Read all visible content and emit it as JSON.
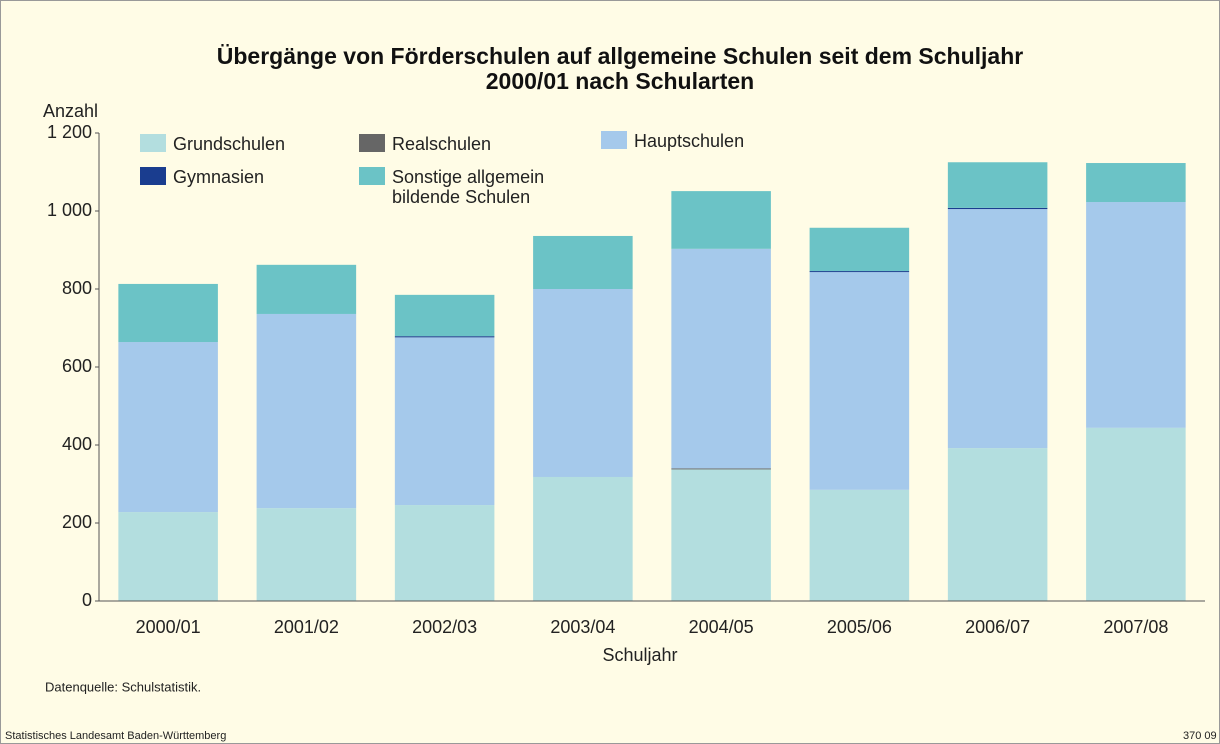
{
  "chart_data": {
    "type": "stacked_bar",
    "title": "Übergänge von Förderschulen auf allgemeine Schulen seit dem Schuljahr 2000/01 nach Schularten",
    "y_label": "Anzahl",
    "x_label": "Schuljahr",
    "categories": [
      "2000/01",
      "2001/02",
      "2002/03",
      "2003/04",
      "2004/05",
      "2005/06",
      "2006/07",
      "2007/08"
    ],
    "series": [
      {
        "name": "Grundschulen",
        "color": "#b3dedf",
        "values": [
          228,
          238,
          246,
          318,
          338,
          285,
          392,
          444
        ]
      },
      {
        "name": "Realschulen",
        "color": "#666666",
        "values": [
          0,
          0,
          0,
          0,
          2,
          0,
          0,
          0
        ]
      },
      {
        "name": "Hauptschulen",
        "color": "#a5c9eb",
        "values": [
          436,
          498,
          430,
          482,
          563,
          559,
          613,
          579
        ]
      },
      {
        "name": "Gymnasien",
        "color": "#1a3d8f",
        "values": [
          0,
          0,
          3,
          0,
          0,
          2,
          3,
          0
        ]
      },
      {
        "name": "Sonstige allgemein bildende Schulen",
        "color": "#6bc3c6",
        "values": [
          149,
          126,
          106,
          136,
          148,
          111,
          117,
          100
        ]
      }
    ],
    "ylim": [
      0,
      1200
    ],
    "yticks": [
      0,
      200,
      400,
      600,
      800,
      {
        "value": 1000,
        "label": "1 000"
      },
      {
        "value": 1200,
        "label": "1 200"
      }
    ],
    "grid": false,
    "source": "Datenquelle: Schulstatistik.",
    "publisher": "Statistisches Landesamt Baden-Württemberg",
    "code": "370 09"
  }
}
